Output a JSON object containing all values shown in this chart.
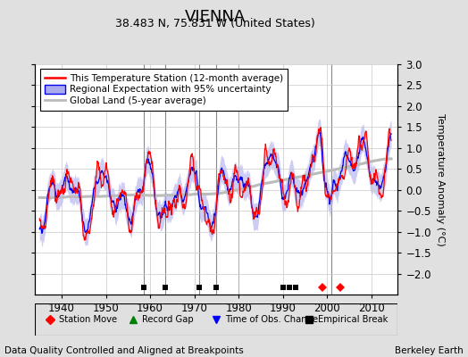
{
  "title": "VIENNA",
  "subtitle": "38.483 N, 75.831 W (United States)",
  "ylabel": "Temperature Anomaly (°C)",
  "xlabel_left": "Data Quality Controlled and Aligned at Breakpoints",
  "xlabel_right": "Berkeley Earth",
  "ylim": [
    -2.5,
    3.0
  ],
  "xlim": [
    1934,
    2016
  ],
  "xticks": [
    1940,
    1950,
    1960,
    1970,
    1980,
    1990,
    2000,
    2010
  ],
  "yticks_right": [
    -2,
    -1.5,
    -1,
    -0.5,
    0,
    0.5,
    1,
    1.5,
    2,
    2.5,
    3
  ],
  "background_color": "#e0e0e0",
  "plot_bg_color": "#ffffff",
  "grid_color": "#c8c8c8",
  "station_color": "#ff0000",
  "regional_color": "#0000ee",
  "regional_fill_color": "#aaaaee",
  "global_color": "#bbbbbb",
  "vertical_line_color": "#888888",
  "vertical_lines": [
    1958.5,
    1963.5,
    1971.0,
    1975.0,
    1980.0,
    2001.0
  ],
  "empirical_breaks": [
    1958.5,
    1963.5,
    1971.0,
    1975.0,
    1990.0,
    1991.5,
    1993.0
  ],
  "station_moves": [
    1999.0,
    2003.0
  ],
  "title_fontsize": 13,
  "subtitle_fontsize": 9,
  "tick_fontsize": 8.5,
  "label_fontsize": 7.5,
  "legend_fontsize": 7.5
}
